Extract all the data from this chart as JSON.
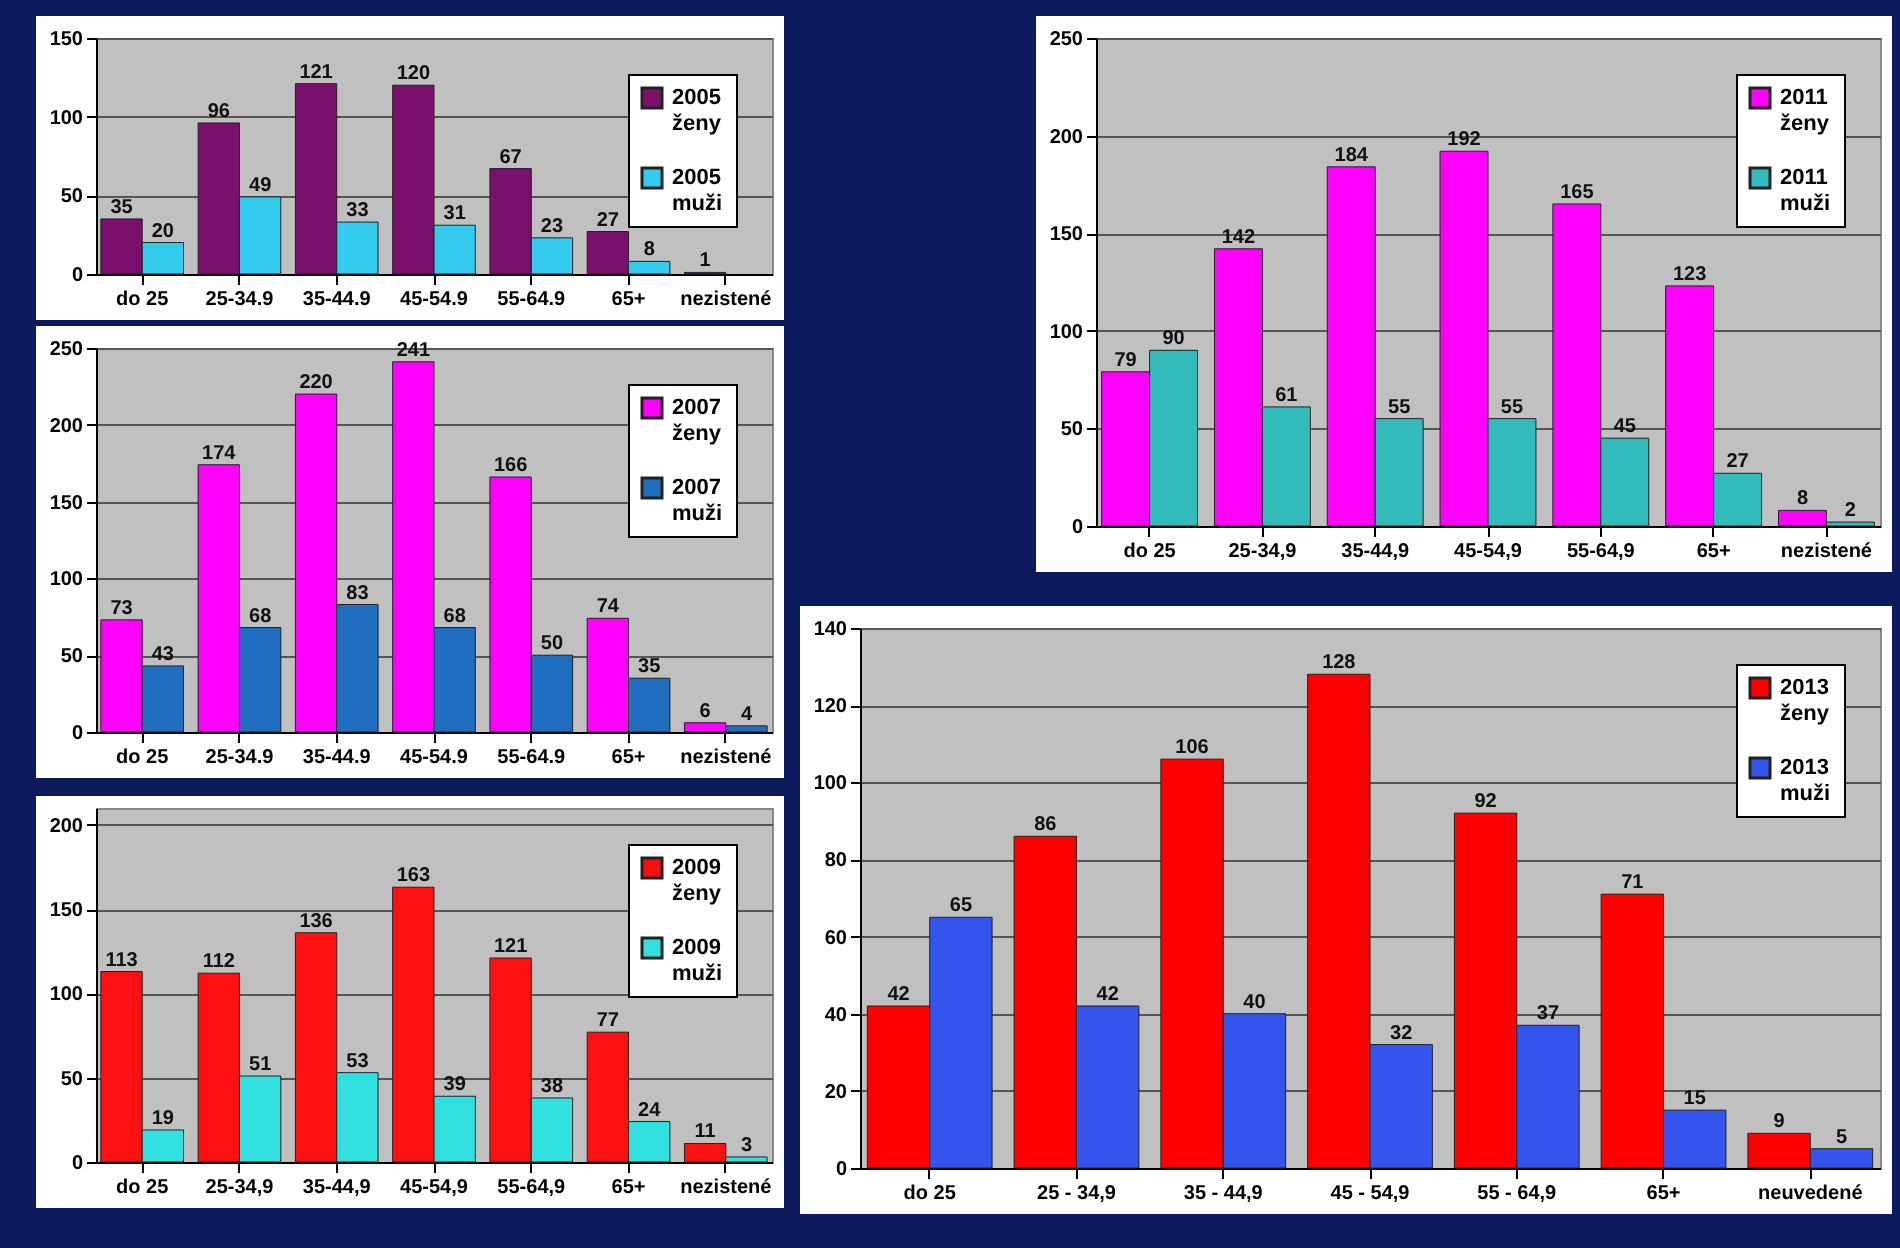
{
  "chart_data": [
    {
      "type": "bar",
      "categories": [
        "do 25",
        "25-34.9",
        "35-44.9",
        "45-54.9",
        "55-64.9",
        "65+",
        "nezistené"
      ],
      "series": [
        {
          "name": "2005 ženy",
          "color": "#7a0f6c",
          "values": [
            35,
            96,
            121,
            120,
            67,
            27,
            1
          ]
        },
        {
          "name": "2005 muži",
          "color": "#33ccee",
          "values": [
            20,
            49,
            33,
            31,
            23,
            8,
            null
          ]
        }
      ],
      "ylim": [
        0,
        150
      ],
      "yticks": [
        0,
        50,
        100,
        150
      ],
      "grid": "y",
      "legend": "top right",
      "data_labels": true
    },
    {
      "type": "bar",
      "categories": [
        "do 25",
        "25-34.9",
        "35-44.9",
        "45-54.9",
        "55-64.9",
        "65+",
        "nezistené"
      ],
      "series": [
        {
          "name": "2007 ženy",
          "color": "#ff00ff",
          "values": [
            73,
            174,
            220,
            241,
            166,
            74,
            6
          ]
        },
        {
          "name": "2007 muži",
          "color": "#1f6ec0",
          "values": [
            43,
            68,
            83,
            68,
            50,
            35,
            4
          ]
        }
      ],
      "ylim": [
        0,
        250
      ],
      "yticks": [
        0,
        50,
        100,
        150,
        200,
        250
      ],
      "grid": "y",
      "legend": "top right",
      "data_labels": true
    },
    {
      "type": "bar",
      "categories": [
        "do 25",
        "25-34,9",
        "35-44,9",
        "45-54,9",
        "55-64,9",
        "65+",
        "nezistené"
      ],
      "series": [
        {
          "name": "2009 ženy",
          "color": "#ff1010",
          "values": [
            113,
            112,
            136,
            163,
            121,
            77,
            11
          ]
        },
        {
          "name": "2009 muži",
          "color": "#33e0e0",
          "values": [
            19,
            51,
            53,
            39,
            38,
            24,
            3
          ]
        }
      ],
      "ylim": [
        0,
        210
      ],
      "yticks": [
        0,
        50,
        100,
        150,
        200
      ],
      "grid": "y",
      "legend": "top right",
      "data_labels": true
    },
    {
      "type": "bar",
      "categories": [
        "do 25",
        "25-34,9",
        "35-44,9",
        "45-54,9",
        "55-64,9",
        "65+",
        "nezistené"
      ],
      "series": [
        {
          "name": "2011 ženy",
          "color": "#ff00ff",
          "values": [
            79,
            142,
            184,
            192,
            165,
            123,
            8
          ]
        },
        {
          "name": "2011 muži",
          "color": "#33bbbb",
          "values": [
            90,
            61,
            55,
            55,
            45,
            27,
            2
          ]
        }
      ],
      "ylim": [
        0,
        250
      ],
      "yticks": [
        0,
        50,
        100,
        150,
        200,
        250
      ],
      "grid": "y",
      "legend": "top right",
      "data_labels": true
    },
    {
      "type": "bar",
      "categories": [
        "do 25",
        "25 - 34,9",
        "35 - 44,9",
        "45 - 54,9",
        "55 - 64,9",
        "65+",
        "neuvedené"
      ],
      "series": [
        {
          "name": "2013 ženy",
          "color": "#ff0000",
          "values": [
            42,
            86,
            106,
            128,
            92,
            71,
            9
          ]
        },
        {
          "name": "2013 muži",
          "color": "#3355ee",
          "values": [
            65,
            42,
            40,
            32,
            37,
            15,
            5
          ]
        }
      ],
      "ylim": [
        0,
        140
      ],
      "yticks": [
        0,
        20,
        40,
        60,
        80,
        100,
        120,
        140
      ],
      "grid": "y",
      "legend": "top right",
      "data_labels": true
    }
  ]
}
